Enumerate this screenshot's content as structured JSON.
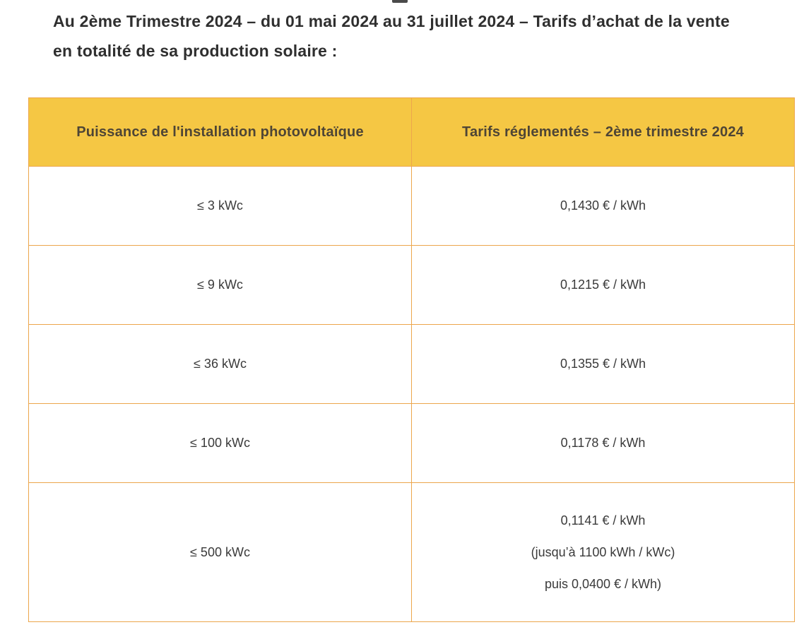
{
  "page": {
    "title_line1": "Au 2ème Trimestre 2024 – du 01 mai 2024 au 31 juillet 2024 – Tarifs d’achat de la vente",
    "title_line2": "en totalité de sa production solaire :"
  },
  "table": {
    "headers": {
      "power": "Puissance de l'installation photovoltaïque",
      "tariff": "Tarifs réglementés – 2ème trimestre 2024"
    },
    "rows": [
      {
        "power": "≤ 3 kWc",
        "tariff_lines": [
          "0,1430 € / kWh"
        ]
      },
      {
        "power": "≤ 9 kWc",
        "tariff_lines": [
          "0,1215 € / kWh"
        ]
      },
      {
        "power": "≤ 36 kWc",
        "tariff_lines": [
          "0,1355 € / kWh"
        ]
      },
      {
        "power": "≤ 100 kWc",
        "tariff_lines": [
          "0,1178 € / kWh"
        ]
      },
      {
        "power": "≤ 500 kWc",
        "tariff_lines": [
          "0,1141 € / kWh",
          "(jusqu’à 1100 kWh / kWc)",
          "puis 0,0400 € / kWh)"
        ]
      }
    ],
    "colors": {
      "header_bg": "#f5c744",
      "header_text": "#4e4535",
      "border": "#eca64c",
      "body_text": "#3a3a3a",
      "title_text": "#2f2f2f"
    }
  }
}
